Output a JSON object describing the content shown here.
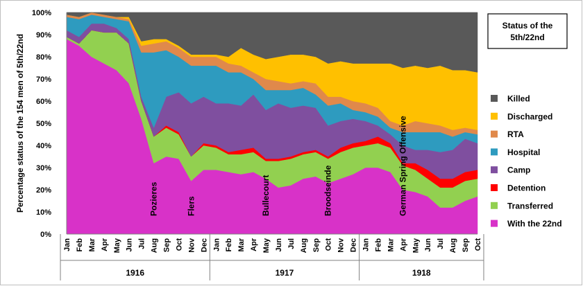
{
  "chart_data": {
    "type": "area",
    "stacked": true,
    "title": "Status of the 5th/22nd",
    "title_lines": [
      "Status of the",
      "5th/22nd"
    ],
    "ylabel": "Percentage status of the 154  men of 5th/22nd",
    "xlabel": "",
    "ylim": [
      0,
      100
    ],
    "y_ticks": [
      "0%",
      "10%",
      "20%",
      "30%",
      "40%",
      "50%",
      "60%",
      "70%",
      "80%",
      "90%",
      "100%"
    ],
    "grid": true,
    "legend_position": "right",
    "categories": [
      "Jan",
      "Feb",
      "Mar",
      "Apr",
      "May",
      "Jun",
      "Jul",
      "Aug",
      "Sep",
      "Oct",
      "Nov",
      "Dec",
      "Jan",
      "Feb",
      "Mar",
      "Apr",
      "May",
      "Jun",
      "Jul",
      "Aug",
      "Sep",
      "Oct",
      "Nov",
      "Dec",
      "Jan",
      "Feb",
      "Mar",
      "Apr",
      "May",
      "Jun",
      "Jul",
      "Aug",
      "Sep",
      "Oct"
    ],
    "years": [
      {
        "label": "1916",
        "start": 0,
        "end": 11
      },
      {
        "label": "1917",
        "start": 12,
        "end": 23
      },
      {
        "label": "1918",
        "start": 24,
        "end": 33
      }
    ],
    "annotations": [
      {
        "text": "Pozieres",
        "index": 7
      },
      {
        "text": "Flers",
        "index": 10
      },
      {
        "text": "Bullecourt",
        "index": 16
      },
      {
        "text": "Broodseinde",
        "index": 21
      },
      {
        "text": "German Spring Offensive",
        "index": 27
      }
    ],
    "series": [
      {
        "name": "With the 22nd",
        "color": "#d832c8",
        "values": [
          88,
          85,
          80,
          77,
          74,
          68,
          52,
          32,
          35,
          34,
          24,
          29,
          29,
          28,
          27,
          28,
          25,
          21,
          22,
          25,
          26,
          23,
          25,
          27,
          30,
          30,
          28,
          20,
          19,
          17,
          12,
          12,
          15,
          17
        ]
      },
      {
        "name": "Transferred",
        "color": "#92d050",
        "values": [
          1,
          1,
          12,
          14,
          17,
          18,
          8,
          12,
          13,
          11,
          11,
          11,
          10,
          8,
          9,
          9,
          8,
          12,
          12,
          11,
          11,
          11,
          12,
          12,
          10,
          11,
          11,
          11,
          10,
          8,
          9,
          9,
          9,
          8
        ]
      },
      {
        "name": "Detention",
        "color": "#ff0000",
        "values": [
          0,
          0,
          0,
          0,
          0,
          0,
          0,
          0,
          1,
          1,
          0,
          1,
          1,
          1,
          2,
          2,
          1,
          1,
          1,
          1,
          1,
          1,
          2,
          2,
          2,
          3,
          2,
          1,
          3,
          4,
          4,
          4,
          4,
          4
        ]
      },
      {
        "name": "Camp",
        "color": "#7f4f9f",
        "values": [
          3,
          3,
          3,
          4,
          2,
          2,
          2,
          4,
          13,
          18,
          24,
          21,
          19,
          22,
          20,
          24,
          22,
          25,
          22,
          21,
          19,
          14,
          12,
          11,
          9,
          5,
          4,
          8,
          6,
          9,
          12,
          13,
          15,
          12
        ]
      },
      {
        "name": "Hospital",
        "color": "#2e9bbf",
        "values": [
          6,
          8,
          4,
          3,
          4,
          8,
          20,
          34,
          21,
          16,
          17,
          14,
          17,
          14,
          15,
          7,
          9,
          6,
          8,
          8,
          6,
          9,
          8,
          4,
          4,
          4,
          3,
          6,
          8,
          8,
          9,
          6,
          3,
          4
        ]
      },
      {
        "name": "RTA",
        "color": "#e0894b",
        "values": [
          1,
          1,
          1,
          1,
          1,
          1,
          3,
          4,
          4,
          4,
          4,
          4,
          4,
          4,
          3,
          3,
          5,
          4,
          3,
          3,
          5,
          4,
          3,
          4,
          4,
          4,
          3,
          3,
          5,
          4,
          3,
          3,
          2,
          2
        ]
      },
      {
        "name": "Discharged",
        "color": "#ffc000",
        "values": [
          0,
          0,
          0,
          0,
          0,
          1,
          2,
          2,
          1,
          1,
          1,
          1,
          1,
          3,
          8,
          8,
          9,
          11,
          13,
          12,
          12,
          15,
          16,
          17,
          18,
          20,
          26,
          26,
          25,
          25,
          27,
          27,
          26,
          26
        ]
      },
      {
        "name": "Killed",
        "color": "#595959",
        "values": [
          1,
          2,
          0,
          1,
          2,
          2,
          13,
          12,
          12,
          15,
          19,
          19,
          19,
          20,
          16,
          19,
          21,
          20,
          19,
          19,
          20,
          23,
          22,
          23,
          23,
          23,
          23,
          25,
          24,
          25,
          24,
          26,
          26,
          27
        ]
      }
    ]
  }
}
